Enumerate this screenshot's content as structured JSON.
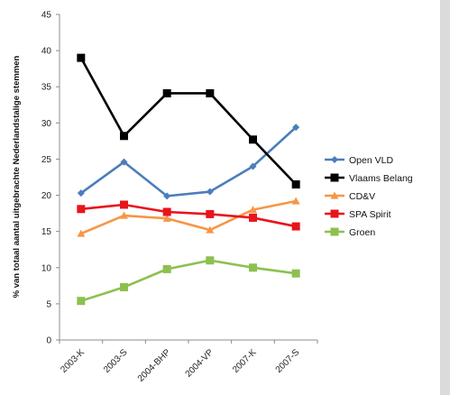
{
  "chart_data": {
    "type": "line",
    "title": "",
    "xlabel": "",
    "ylabel": "% van totaal aantal uitgebrachte Nederlandstalige stemmen",
    "categories": [
      "2003-K",
      "2003-S",
      "2004-BHP",
      "2004-VP",
      "2007-K",
      "2007-S"
    ],
    "ylim": [
      0,
      45
    ],
    "yticks": [
      0,
      5,
      10,
      15,
      20,
      25,
      30,
      35,
      40,
      45
    ],
    "grid": false,
    "legend_position": "right",
    "series": [
      {
        "name": "Open VLD",
        "values": [
          20.3,
          24.6,
          19.9,
          20.5,
          24.0,
          29.4
        ],
        "color": "#4a7ebb",
        "marker": "diamond"
      },
      {
        "name": "Vlaams Belang",
        "values": [
          39.0,
          28.2,
          34.1,
          34.1,
          27.7,
          21.5
        ],
        "color": "#000000",
        "marker": "square"
      },
      {
        "name": "CD&V",
        "values": [
          14.7,
          17.2,
          16.8,
          15.2,
          18.0,
          19.2
        ],
        "color": "#f79646",
        "marker": "triangle"
      },
      {
        "name": "SPA Spirit",
        "values": [
          18.1,
          18.7,
          17.7,
          17.4,
          16.9,
          15.7
        ],
        "color": "#e8141b",
        "marker": "square"
      },
      {
        "name": "Groen",
        "values": [
          5.4,
          7.3,
          9.8,
          11.0,
          10.0,
          9.2
        ],
        "color": "#8cc04f",
        "marker": "square"
      }
    ]
  }
}
